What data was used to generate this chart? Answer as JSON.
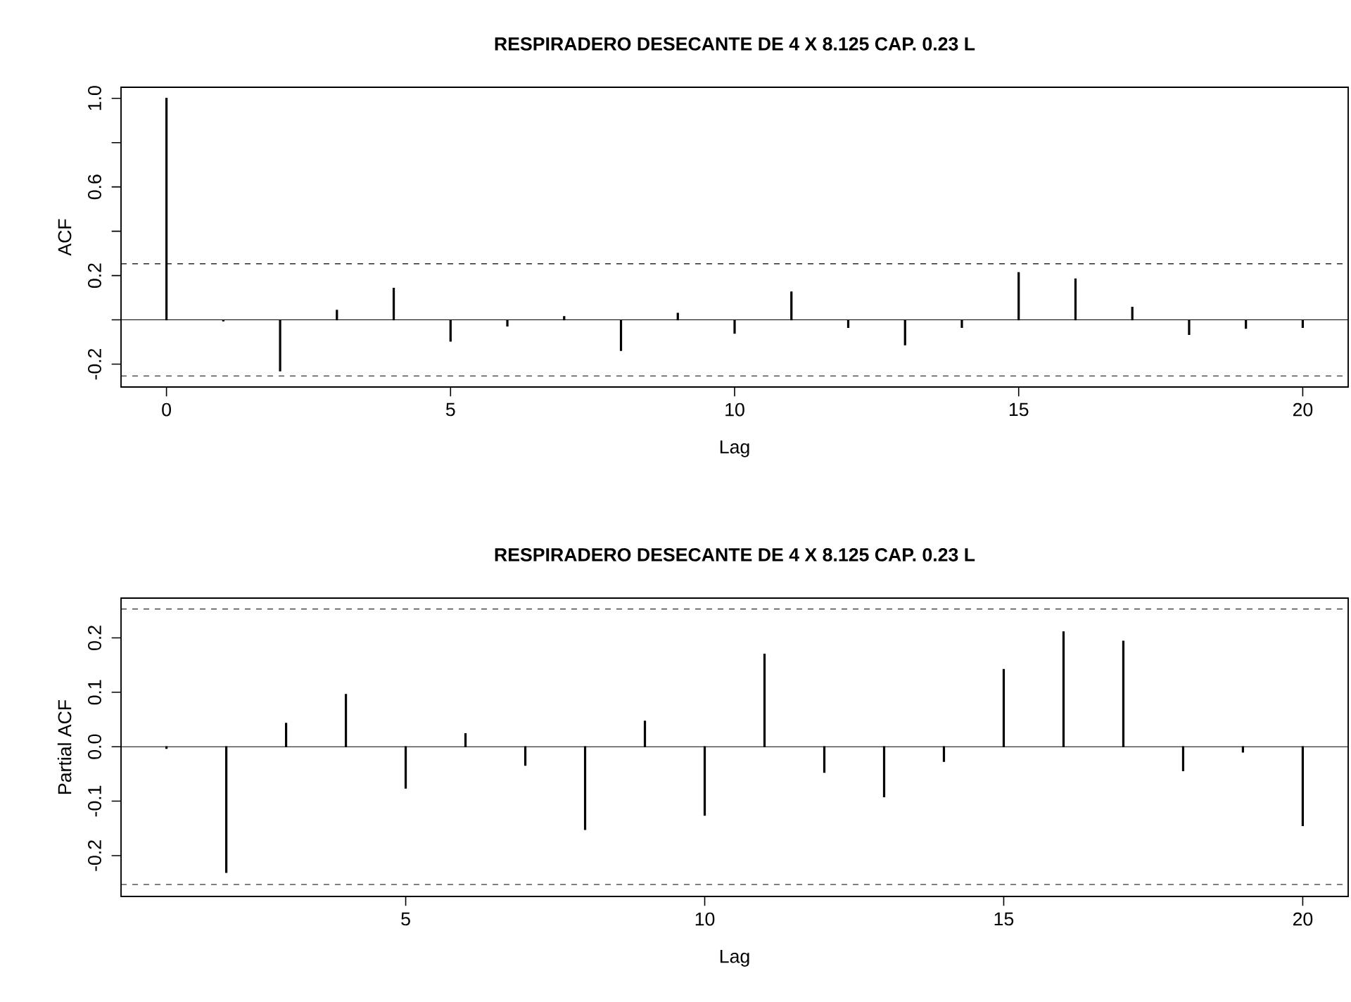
{
  "chart_data": [
    {
      "type": "bar",
      "title": "RESPIRADERO DESECANTE DE 4 X 8.125 CAP. 0.23 L",
      "xlabel": "Lag",
      "ylabel": "ACF",
      "x": [
        0,
        1,
        2,
        3,
        4,
        5,
        6,
        7,
        8,
        9,
        10,
        11,
        12,
        13,
        14,
        15,
        16,
        17,
        18,
        19,
        20
      ],
      "values": [
        1.0,
        -0.005,
        -0.23,
        0.043,
        0.143,
        -0.096,
        -0.028,
        0.015,
        -0.138,
        0.03,
        -0.06,
        0.126,
        -0.034,
        -0.113,
        -0.034,
        0.213,
        0.185,
        0.057,
        -0.066,
        -0.038,
        -0.034
      ],
      "color": "#000000",
      "xlim": [
        -0.8,
        20.8
      ],
      "ylim": [
        -0.303,
        1.05
      ],
      "xticks": [
        0,
        5,
        10,
        15,
        20
      ],
      "yticks": [
        {
          "value": -0.2,
          "label": "-0.2"
        },
        {
          "value": 0,
          "label": null
        },
        {
          "value": 0.2,
          "label": "0.2"
        },
        {
          "value": 0.4,
          "label": null
        },
        {
          "value": 0.6,
          "label": "0.6"
        },
        {
          "value": 0.8,
          "label": null
        },
        {
          "value": 1,
          "label": "1.0"
        }
      ],
      "ref_lines": [
        {
          "axis": "y",
          "value": 0.253,
          "line_style": "dashed"
        },
        {
          "axis": "y",
          "value": -0.253,
          "line_style": "dashed"
        },
        {
          "axis": "y",
          "value": 0,
          "line_style": "solid"
        }
      ]
    },
    {
      "type": "bar",
      "title": "RESPIRADERO DESECANTE DE 4 X 8.125 CAP. 0.23 L",
      "xlabel": "Lag",
      "ylabel": "Partial ACF",
      "x": [
        1,
        2,
        3,
        4,
        5,
        6,
        7,
        8,
        9,
        10,
        11,
        12,
        13,
        14,
        15,
        16,
        17,
        18,
        19,
        20
      ],
      "values": [
        -0.003,
        -0.231,
        0.043,
        0.096,
        -0.076,
        0.024,
        -0.034,
        -0.152,
        0.047,
        -0.126,
        0.17,
        -0.047,
        -0.092,
        -0.027,
        0.142,
        0.211,
        0.194,
        -0.044,
        -0.01,
        -0.145
      ],
      "color": "#000000",
      "xlim": [
        0.24,
        20.76
      ],
      "ylim": [
        -0.275,
        0.273
      ],
      "xticks": [
        5,
        10,
        15,
        20
      ],
      "yticks": [
        {
          "value": -0.2,
          "label": "-0.2"
        },
        {
          "value": -0.1,
          "label": "-0.1"
        },
        {
          "value": 0,
          "label": "0.0"
        },
        {
          "value": 0.1,
          "label": "0.1"
        },
        {
          "value": 0.2,
          "label": "0.2"
        }
      ],
      "ref_lines": [
        {
          "axis": "y",
          "value": 0.253,
          "line_style": "dashed"
        },
        {
          "axis": "y",
          "value": -0.253,
          "line_style": "dashed"
        },
        {
          "axis": "y",
          "value": 0,
          "line_style": "solid"
        }
      ]
    }
  ]
}
